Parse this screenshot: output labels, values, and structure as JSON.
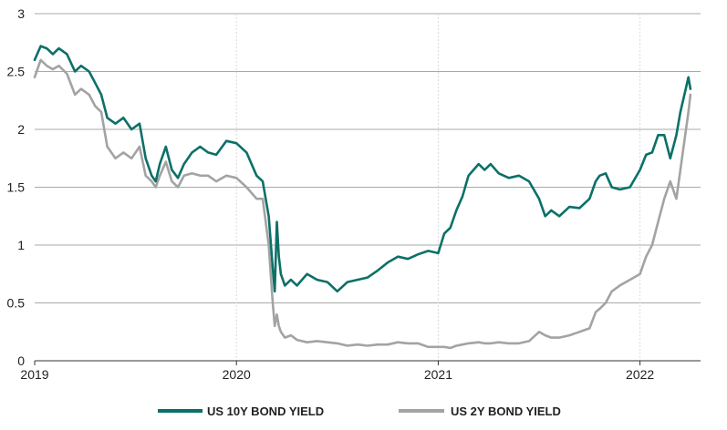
{
  "chart_data": {
    "type": "line",
    "title": "",
    "xlabel": "",
    "ylabel": "",
    "xlim": [
      2019.0,
      2022.3
    ],
    "ylim": [
      0,
      3
    ],
    "yticks": [
      "0",
      "0.5",
      "1",
      "1.5",
      "2",
      "2.5",
      "3"
    ],
    "xticks": [
      "2019",
      "2020",
      "2021",
      "2022"
    ],
    "grid": "horizontal",
    "legend": "bottom",
    "series": [
      {
        "name": "US 10Y BOND YIELD",
        "color": "#0b7068",
        "x": [
          2019.0,
          2019.03,
          2019.06,
          2019.09,
          2019.12,
          2019.16,
          2019.2,
          2019.23,
          2019.27,
          2019.3,
          2019.33,
          2019.36,
          2019.4,
          2019.44,
          2019.48,
          2019.52,
          2019.55,
          2019.58,
          2019.6,
          2019.62,
          2019.65,
          2019.68,
          2019.71,
          2019.74,
          2019.78,
          2019.82,
          2019.86,
          2019.9,
          2019.95,
          2020.0,
          2020.05,
          2020.1,
          2020.13,
          2020.16,
          2020.18,
          2020.19,
          2020.2,
          2020.21,
          2020.22,
          2020.24,
          2020.27,
          2020.3,
          2020.35,
          2020.4,
          2020.45,
          2020.5,
          2020.55,
          2020.6,
          2020.65,
          2020.7,
          2020.75,
          2020.8,
          2020.85,
          2020.9,
          2020.95,
          2021.0,
          2021.03,
          2021.06,
          2021.09,
          2021.12,
          2021.15,
          2021.2,
          2021.23,
          2021.26,
          2021.3,
          2021.35,
          2021.4,
          2021.45,
          2021.5,
          2021.53,
          2021.56,
          2021.6,
          2021.65,
          2021.7,
          2021.75,
          2021.78,
          2021.8,
          2021.83,
          2021.86,
          2021.9,
          2021.95,
          2022.0,
          2022.03,
          2022.06,
          2022.09,
          2022.12,
          2022.15,
          2022.18,
          2022.2,
          2022.22,
          2022.24,
          2022.25
        ],
        "values": [
          2.6,
          2.72,
          2.7,
          2.65,
          2.7,
          2.65,
          2.5,
          2.55,
          2.5,
          2.4,
          2.3,
          2.1,
          2.05,
          2.1,
          2.0,
          2.05,
          1.75,
          1.6,
          1.55,
          1.7,
          1.85,
          1.65,
          1.58,
          1.7,
          1.8,
          1.85,
          1.8,
          1.78,
          1.9,
          1.88,
          1.8,
          1.6,
          1.55,
          1.25,
          0.8,
          0.6,
          1.2,
          0.9,
          0.75,
          0.65,
          0.7,
          0.65,
          0.75,
          0.7,
          0.68,
          0.6,
          0.68,
          0.7,
          0.72,
          0.78,
          0.85,
          0.9,
          0.88,
          0.92,
          0.95,
          0.93,
          1.1,
          1.15,
          1.3,
          1.42,
          1.6,
          1.7,
          1.65,
          1.7,
          1.62,
          1.58,
          1.6,
          1.55,
          1.4,
          1.25,
          1.3,
          1.25,
          1.33,
          1.32,
          1.4,
          1.55,
          1.6,
          1.62,
          1.5,
          1.48,
          1.5,
          1.65,
          1.78,
          1.8,
          1.95,
          1.95,
          1.75,
          1.95,
          2.15,
          2.3,
          2.45,
          2.35
        ]
      },
      {
        "name": "US 2Y BOND YIELD",
        "color": "#a3a3a3",
        "x": [
          2019.0,
          2019.03,
          2019.06,
          2019.09,
          2019.12,
          2019.16,
          2019.2,
          2019.23,
          2019.27,
          2019.3,
          2019.33,
          2019.36,
          2019.4,
          2019.44,
          2019.48,
          2019.52,
          2019.55,
          2019.58,
          2019.6,
          2019.62,
          2019.65,
          2019.68,
          2019.71,
          2019.74,
          2019.78,
          2019.82,
          2019.86,
          2019.9,
          2019.95,
          2020.0,
          2020.05,
          2020.1,
          2020.13,
          2020.16,
          2020.18,
          2020.19,
          2020.2,
          2020.21,
          2020.22,
          2020.24,
          2020.27,
          2020.3,
          2020.35,
          2020.4,
          2020.45,
          2020.5,
          2020.55,
          2020.6,
          2020.65,
          2020.7,
          2020.75,
          2020.8,
          2020.85,
          2020.9,
          2020.95,
          2021.0,
          2021.03,
          2021.06,
          2021.09,
          2021.12,
          2021.15,
          2021.2,
          2021.23,
          2021.26,
          2021.3,
          2021.35,
          2021.4,
          2021.45,
          2021.5,
          2021.53,
          2021.56,
          2021.6,
          2021.65,
          2021.7,
          2021.75,
          2021.78,
          2021.8,
          2021.83,
          2021.86,
          2021.9,
          2021.95,
          2022.0,
          2022.03,
          2022.06,
          2022.09,
          2022.12,
          2022.15,
          2022.18,
          2022.2,
          2022.22,
          2022.24,
          2022.25
        ],
        "values": [
          2.45,
          2.6,
          2.55,
          2.52,
          2.55,
          2.48,
          2.3,
          2.35,
          2.3,
          2.2,
          2.15,
          1.85,
          1.75,
          1.8,
          1.75,
          1.85,
          1.6,
          1.55,
          1.5,
          1.6,
          1.72,
          1.55,
          1.5,
          1.6,
          1.62,
          1.6,
          1.6,
          1.55,
          1.6,
          1.58,
          1.5,
          1.4,
          1.4,
          1.0,
          0.5,
          0.3,
          0.4,
          0.3,
          0.25,
          0.2,
          0.22,
          0.18,
          0.16,
          0.17,
          0.16,
          0.15,
          0.13,
          0.14,
          0.13,
          0.14,
          0.14,
          0.16,
          0.15,
          0.15,
          0.12,
          0.12,
          0.12,
          0.11,
          0.13,
          0.14,
          0.15,
          0.16,
          0.15,
          0.15,
          0.16,
          0.15,
          0.15,
          0.17,
          0.25,
          0.22,
          0.2,
          0.2,
          0.22,
          0.25,
          0.28,
          0.42,
          0.45,
          0.5,
          0.6,
          0.65,
          0.7,
          0.75,
          0.9,
          1.0,
          1.2,
          1.4,
          1.55,
          1.4,
          1.65,
          1.9,
          2.15,
          2.3
        ]
      }
    ]
  }
}
